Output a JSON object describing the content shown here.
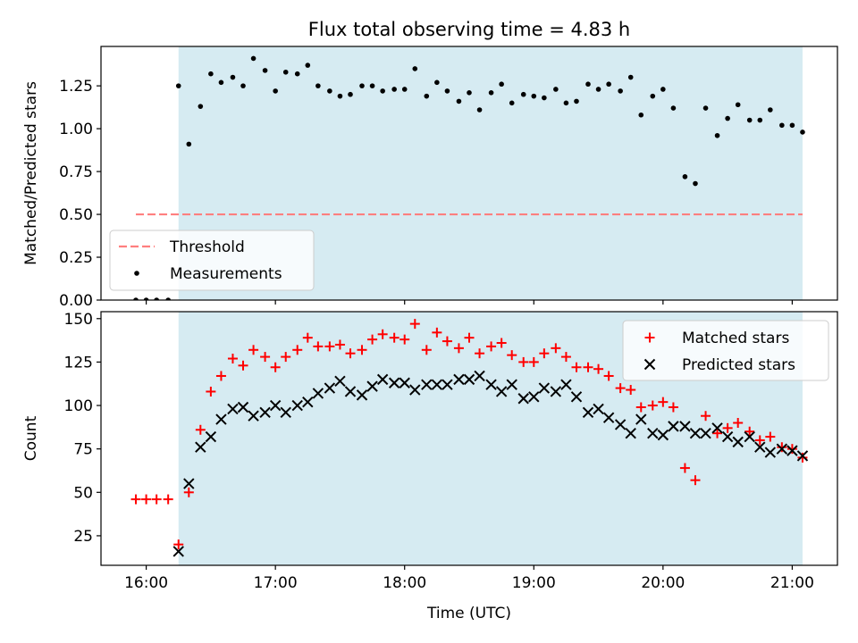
{
  "title": "Flux total observing time = 4.83 h",
  "colors": {
    "observing_span": "#add8e6",
    "threshold": "#ff7f7f",
    "measurements": "#000000",
    "matched": "#ff0000",
    "predicted": "#000000"
  },
  "chart_data": [
    {
      "type": "scatter",
      "panel": "top",
      "ylabel": "Matched/Predicted stars",
      "ylim": [
        0,
        1.48
      ],
      "yticks": [
        "0.00",
        "0.25",
        "0.50",
        "0.75",
        "1.00",
        "1.25"
      ],
      "ytick_values": [
        0,
        0.25,
        0.5,
        0.75,
        1.0,
        1.25
      ],
      "xlim": [
        15.65,
        21.35
      ],
      "shaded_span": [
        16.25,
        21.08
      ],
      "threshold": {
        "name": "Threshold",
        "value": 0.5,
        "x_range": [
          15.92,
          21.08
        ]
      },
      "legend": {
        "placement": "lower-left",
        "entries": [
          "Threshold",
          "Measurements"
        ]
      },
      "series": [
        {
          "name": "Measurements",
          "x": [
            15.92,
            16.0,
            16.08,
            16.17,
            16.25,
            16.33,
            16.42,
            16.5,
            16.58,
            16.67,
            16.75,
            16.83,
            16.92,
            17.0,
            17.08,
            17.17,
            17.25,
            17.33,
            17.42,
            17.5,
            17.58,
            17.67,
            17.75,
            17.83,
            17.92,
            18.0,
            18.08,
            18.17,
            18.25,
            18.33,
            18.42,
            18.5,
            18.58,
            18.67,
            18.75,
            18.83,
            18.92,
            19.0,
            19.08,
            19.17,
            19.25,
            19.33,
            19.42,
            19.5,
            19.58,
            19.67,
            19.75,
            19.83,
            19.92,
            20.0,
            20.08,
            20.17,
            20.25,
            20.33,
            20.42,
            20.5,
            20.58,
            20.67,
            20.75,
            20.83,
            20.92,
            21.0,
            21.08
          ],
          "y": [
            0,
            0,
            0,
            0,
            1.25,
            0.91,
            1.13,
            1.32,
            1.27,
            1.3,
            1.25,
            1.41,
            1.34,
            1.22,
            1.33,
            1.32,
            1.37,
            1.25,
            1.22,
            1.19,
            1.2,
            1.25,
            1.25,
            1.22,
            1.23,
            1.23,
            1.35,
            1.19,
            1.27,
            1.22,
            1.16,
            1.21,
            1.11,
            1.21,
            1.26,
            1.15,
            1.2,
            1.19,
            1.18,
            1.23,
            1.15,
            1.16,
            1.26,
            1.23,
            1.26,
            1.22,
            1.3,
            1.08,
            1.19,
            1.23,
            1.12,
            0.72,
            0.68,
            1.12,
            0.96,
            1.06,
            1.14,
            1.05,
            1.05,
            1.11,
            1.02,
            1.02,
            0.98
          ]
        }
      ]
    },
    {
      "type": "scatter",
      "panel": "bottom",
      "ylabel": "Count",
      "xlabel": "Time (UTC)",
      "ylim": [
        8,
        154
      ],
      "yticks": [
        "25",
        "50",
        "75",
        "100",
        "125",
        "150"
      ],
      "ytick_values": [
        25,
        50,
        75,
        100,
        125,
        150
      ],
      "xlim": [
        15.65,
        21.35
      ],
      "xticks": [
        "16:00",
        "17:00",
        "18:00",
        "19:00",
        "20:00",
        "21:00"
      ],
      "xtick_values": [
        16,
        17,
        18,
        19,
        20,
        21
      ],
      "shaded_span": [
        16.25,
        21.08
      ],
      "legend": {
        "placement": "upper-right",
        "entries": [
          "Matched stars",
          "Predicted stars"
        ]
      },
      "series": [
        {
          "name": "Matched stars",
          "marker": "plus",
          "x": [
            15.92,
            16.0,
            16.08,
            16.17,
            16.25,
            16.33,
            16.42,
            16.5,
            16.58,
            16.67,
            16.75,
            16.83,
            16.92,
            17.0,
            17.08,
            17.17,
            17.25,
            17.33,
            17.42,
            17.5,
            17.58,
            17.67,
            17.75,
            17.83,
            17.92,
            18.0,
            18.08,
            18.17,
            18.25,
            18.33,
            18.42,
            18.5,
            18.58,
            18.67,
            18.75,
            18.83,
            18.92,
            19.0,
            19.08,
            19.17,
            19.25,
            19.33,
            19.42,
            19.5,
            19.58,
            19.67,
            19.75,
            19.83,
            19.92,
            20.0,
            20.08,
            20.17,
            20.25,
            20.33,
            20.42,
            20.5,
            20.58,
            20.67,
            20.75,
            20.83,
            20.92,
            21.0,
            21.08
          ],
          "y": [
            46,
            46,
            46,
            46,
            20,
            50,
            86,
            108,
            117,
            127,
            123,
            132,
            128,
            122,
            128,
            132,
            139,
            134,
            134,
            135,
            130,
            132,
            138,
            141,
            139,
            138,
            147,
            132,
            142,
            137,
            133,
            139,
            130,
            134,
            136,
            129,
            125,
            125,
            130,
            133,
            128,
            122,
            122,
            121,
            117,
            110,
            109,
            99,
            100,
            102,
            99,
            64,
            57,
            94,
            84,
            87,
            90,
            85,
            80,
            82,
            76,
            75,
            70
          ]
        },
        {
          "name": "Predicted stars",
          "marker": "x",
          "x": [
            16.25,
            16.33,
            16.42,
            16.5,
            16.58,
            16.67,
            16.75,
            16.83,
            16.92,
            17.0,
            17.08,
            17.17,
            17.25,
            17.33,
            17.42,
            17.5,
            17.58,
            17.67,
            17.75,
            17.83,
            17.92,
            18.0,
            18.08,
            18.17,
            18.25,
            18.33,
            18.42,
            18.5,
            18.58,
            18.67,
            18.75,
            18.83,
            18.92,
            19.0,
            19.08,
            19.17,
            19.25,
            19.33,
            19.42,
            19.5,
            19.58,
            19.67,
            19.75,
            19.83,
            19.92,
            20.0,
            20.08,
            20.17,
            20.25,
            20.33,
            20.42,
            20.5,
            20.58,
            20.67,
            20.75,
            20.83,
            20.92,
            21.0,
            21.08
          ],
          "y": [
            16,
            55,
            76,
            82,
            92,
            98,
            99,
            94,
            96,
            100,
            96,
            100,
            102,
            107,
            110,
            114,
            108,
            106,
            111,
            115,
            113,
            113,
            109,
            112,
            112,
            112,
            115,
            115,
            117,
            112,
            108,
            112,
            104,
            105,
            110,
            108,
            112,
            105,
            96,
            98,
            93,
            89,
            84,
            92,
            84,
            83,
            88,
            88,
            84,
            84,
            87,
            82,
            79,
            82,
            76,
            73,
            75,
            74,
            71
          ]
        }
      ]
    }
  ]
}
